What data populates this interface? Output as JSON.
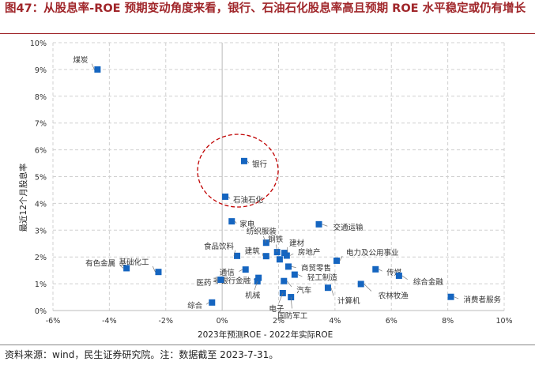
{
  "title": "图47：从股息率-ROE 预期变动角度来看，银行、石油石化股息率高且预期 ROE 水平稳定或仍有增长",
  "source": "资料来源：wind，民生证券研究院。注：数据截至 2023-7-31。",
  "chart_data": {
    "type": "scatter",
    "xlabel": "2023年预测ROE - 2022年实际ROE",
    "ylabel": "最近12个月股息率",
    "xlim": [
      -6,
      10
    ],
    "ylim": [
      0,
      10
    ],
    "xticks": [
      "-6%",
      "-4%",
      "-2%",
      "0%",
      "2%",
      "4%",
      "6%",
      "8%",
      "10%"
    ],
    "yticks": [
      "0%",
      "1%",
      "2%",
      "3%",
      "4%",
      "5%",
      "6%",
      "7%",
      "8%",
      "9%",
      "10%"
    ],
    "grid": true,
    "marker_color": "#1565c0",
    "highlight_color": "#c00000",
    "points": [
      {
        "label": "煤炭",
        "x": -4.42,
        "y": 9.0
      },
      {
        "label": "银行",
        "x": 0.78,
        "y": 5.58
      },
      {
        "label": "石油石化",
        "x": 0.11,
        "y": 4.25
      },
      {
        "label": "家电",
        "x": 0.34,
        "y": 3.33
      },
      {
        "label": "交通运输",
        "x": 3.43,
        "y": 3.22
      },
      {
        "label": "纺织服装",
        "x": 1.56,
        "y": 2.53
      },
      {
        "label": "钢铁",
        "x": 1.95,
        "y": 2.18
      },
      {
        "label": "建材",
        "x": 2.21,
        "y": 2.15
      },
      {
        "label": "房地产",
        "x": 2.29,
        "y": 2.05
      },
      {
        "label": "",
        "x": 2.04,
        "y": 1.91
      },
      {
        "label": "建筑",
        "x": 1.56,
        "y": 2.03
      },
      {
        "label": "食品饮料",
        "x": 0.53,
        "y": 2.04
      },
      {
        "label": "通信",
        "x": 0.83,
        "y": 1.53
      },
      {
        "label": "非银行金融",
        "x": 1.29,
        "y": 1.22
      },
      {
        "label": "机械",
        "x": 1.25,
        "y": 1.09
      },
      {
        "label": "医药",
        "x": -0.05,
        "y": 1.15
      },
      {
        "label": "综合",
        "x": -0.36,
        "y": 0.3
      },
      {
        "label": "电子",
        "x": 2.15,
        "y": 0.65
      },
      {
        "label": "国防军工",
        "x": 2.44,
        "y": 0.5
      },
      {
        "label": "汽车",
        "x": 2.19,
        "y": 1.1
      },
      {
        "label": "商贸零售",
        "x": 2.35,
        "y": 1.64
      },
      {
        "label": "轻工制造",
        "x": 2.57,
        "y": 1.34
      },
      {
        "label": "电力及公用事业",
        "x": 4.06,
        "y": 1.86
      },
      {
        "label": "传媒",
        "x": 5.44,
        "y": 1.54
      },
      {
        "label": "综合金融",
        "x": 6.27,
        "y": 1.3
      },
      {
        "label": "农林牧渔",
        "x": 4.92,
        "y": 0.99
      },
      {
        "label": "计算机",
        "x": 3.75,
        "y": 0.85
      },
      {
        "label": "消费者服务",
        "x": 8.11,
        "y": 0.51
      },
      {
        "label": "有色金属",
        "x": -3.39,
        "y": 1.58
      },
      {
        "label": "基础化工",
        "x": -2.26,
        "y": 1.44
      }
    ]
  }
}
